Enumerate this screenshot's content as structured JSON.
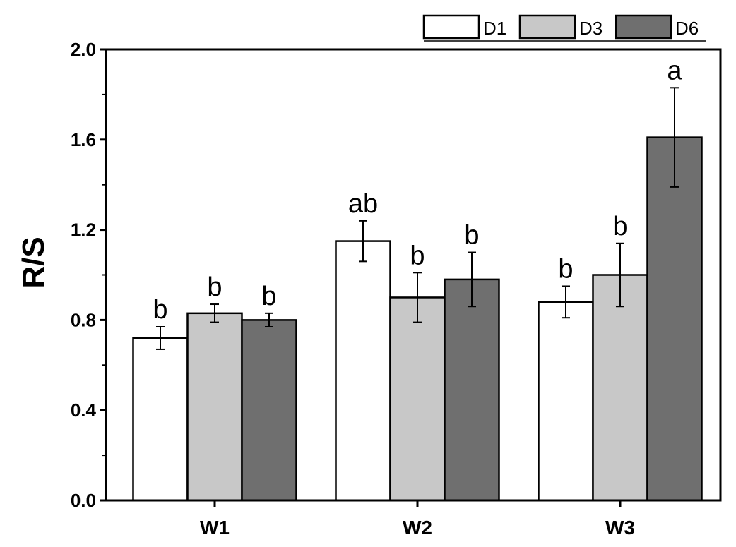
{
  "chart_data": {
    "type": "bar",
    "title": "",
    "xlabel": "",
    "ylabel": "R/S",
    "ylim": [
      0,
      2.0
    ],
    "yticks": [
      "0.0",
      "0.4",
      "0.8",
      "1.2",
      "1.6",
      "2.0"
    ],
    "ytick_values": [
      0,
      0.4,
      0.8,
      1.2,
      1.6,
      2.0
    ],
    "categories": [
      "W1",
      "W2",
      "W3"
    ],
    "series": [
      {
        "name": "D1",
        "color": "#ffffff",
        "values": [
          0.72,
          1.15,
          0.88
        ],
        "errors": [
          0.05,
          0.09,
          0.07
        ],
        "letters": [
          "b",
          "ab",
          "b"
        ]
      },
      {
        "name": "D3",
        "color": "#c8c8c8",
        "values": [
          0.83,
          0.9,
          1.0
        ],
        "errors": [
          0.04,
          0.11,
          0.14
        ],
        "letters": [
          "b",
          "b",
          "b"
        ]
      },
      {
        "name": "D6",
        "color": "#6f6f6f",
        "values": [
          0.8,
          0.98,
          1.61
        ],
        "errors": [
          0.03,
          0.12,
          0.22
        ],
        "letters": [
          "b",
          "b",
          "a"
        ]
      }
    ],
    "legend": {
      "position": "top-right",
      "entries": [
        "D1",
        "D3",
        "D6"
      ]
    },
    "grid": false
  }
}
